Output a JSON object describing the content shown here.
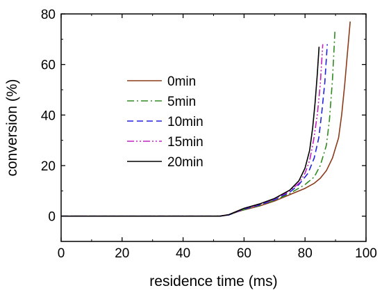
{
  "chart_data": {
    "type": "line",
    "title": "",
    "xlabel": "residence time (ms)",
    "ylabel": "conversion (%)",
    "xlim": [
      0,
      100
    ],
    "ylim": [
      -10,
      80
    ],
    "x_ticks": [
      0,
      20,
      40,
      60,
      80,
      100
    ],
    "y_ticks": [
      0,
      20,
      40,
      60,
      80
    ],
    "grid": false,
    "legend_position": "center-left",
    "series": [
      {
        "name": "0min",
        "color": "#8B3A1A",
        "dash": "solid",
        "x": [
          0,
          20,
          40,
          52,
          55,
          58,
          60,
          65,
          70,
          75,
          80,
          83,
          85,
          87,
          89,
          91,
          92,
          93,
          94,
          94.8
        ],
        "y": [
          0,
          0,
          0,
          0,
          0.5,
          1.8,
          2.5,
          4,
          6,
          8.5,
          11,
          13,
          15,
          18,
          23,
          31,
          40,
          52,
          66,
          77
        ]
      },
      {
        "name": "5min",
        "color": "#2E8B1E",
        "dash": "dashdot",
        "x": [
          0,
          20,
          40,
          52,
          55,
          58,
          60,
          65,
          70,
          75,
          80,
          83,
          85,
          87,
          88,
          89,
          89.8
        ],
        "y": [
          0,
          0,
          0,
          0,
          0.5,
          1.8,
          2.6,
          4.2,
          6.3,
          9,
          12.5,
          15.5,
          20,
          28,
          38,
          54,
          73
        ]
      },
      {
        "name": "10min",
        "color": "#2020E0",
        "dash": "dashed",
        "x": [
          0,
          20,
          40,
          52,
          55,
          58,
          60,
          65,
          70,
          75,
          78,
          81,
          83,
          84.5,
          85.5,
          86.5,
          87.3
        ],
        "y": [
          0,
          0,
          0,
          0,
          0.5,
          1.9,
          2.8,
          4.4,
          6.5,
          9.5,
          12.5,
          17,
          23,
          31,
          41,
          53,
          68
        ]
      },
      {
        "name": "15min",
        "color": "#C020C0",
        "dash": "dashdotdot",
        "x": [
          0,
          20,
          40,
          52,
          55,
          58,
          60,
          65,
          70,
          75,
          78,
          80,
          81.5,
          82.8,
          84,
          85,
          85.8
        ],
        "y": [
          0,
          0,
          0,
          0,
          0.6,
          2,
          3,
          4.6,
          6.8,
          10,
          13,
          17,
          22,
          30,
          40,
          52,
          68
        ]
      },
      {
        "name": "20min",
        "color": "#000000",
        "dash": "solid",
        "x": [
          0,
          20,
          40,
          52,
          55,
          58,
          60,
          65,
          70,
          75,
          78,
          80,
          81.5,
          82.5,
          83.3,
          84,
          84.6
        ],
        "y": [
          0,
          0,
          0,
          0,
          0.6,
          2.1,
          3.1,
          4.8,
          7,
          10.3,
          14,
          19,
          26,
          35,
          45,
          56,
          67
        ]
      }
    ]
  }
}
